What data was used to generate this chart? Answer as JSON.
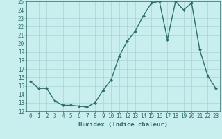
{
  "x": [
    0,
    1,
    2,
    3,
    4,
    5,
    6,
    7,
    8,
    9,
    10,
    11,
    12,
    13,
    14,
    15,
    16,
    17,
    18,
    19,
    20,
    21,
    22,
    23
  ],
  "y": [
    15.5,
    14.7,
    14.7,
    13.2,
    12.7,
    12.7,
    12.6,
    12.5,
    13.0,
    14.5,
    15.7,
    18.5,
    20.3,
    21.5,
    23.3,
    24.8,
    25.0,
    20.5,
    25.0,
    24.0,
    24.8,
    19.3,
    16.2,
    14.7
  ],
  "line_color": "#2d6e6e",
  "marker": "D",
  "markersize": 2.0,
  "linewidth": 1.0,
  "bg_color": "#c8eeee",
  "grid_color": "#aad4d4",
  "xlabel": "Humidex (Indice chaleur)",
  "ylim": [
    12,
    25
  ],
  "xlim": [
    -0.5,
    23.5
  ],
  "yticks": [
    12,
    13,
    14,
    15,
    16,
    17,
    18,
    19,
    20,
    21,
    22,
    23,
    24,
    25
  ],
  "xticks": [
    0,
    1,
    2,
    3,
    4,
    5,
    6,
    7,
    8,
    9,
    10,
    11,
    12,
    13,
    14,
    15,
    16,
    17,
    18,
    19,
    20,
    21,
    22,
    23
  ],
  "tick_fontsize": 5.5,
  "xlabel_fontsize": 6.5
}
